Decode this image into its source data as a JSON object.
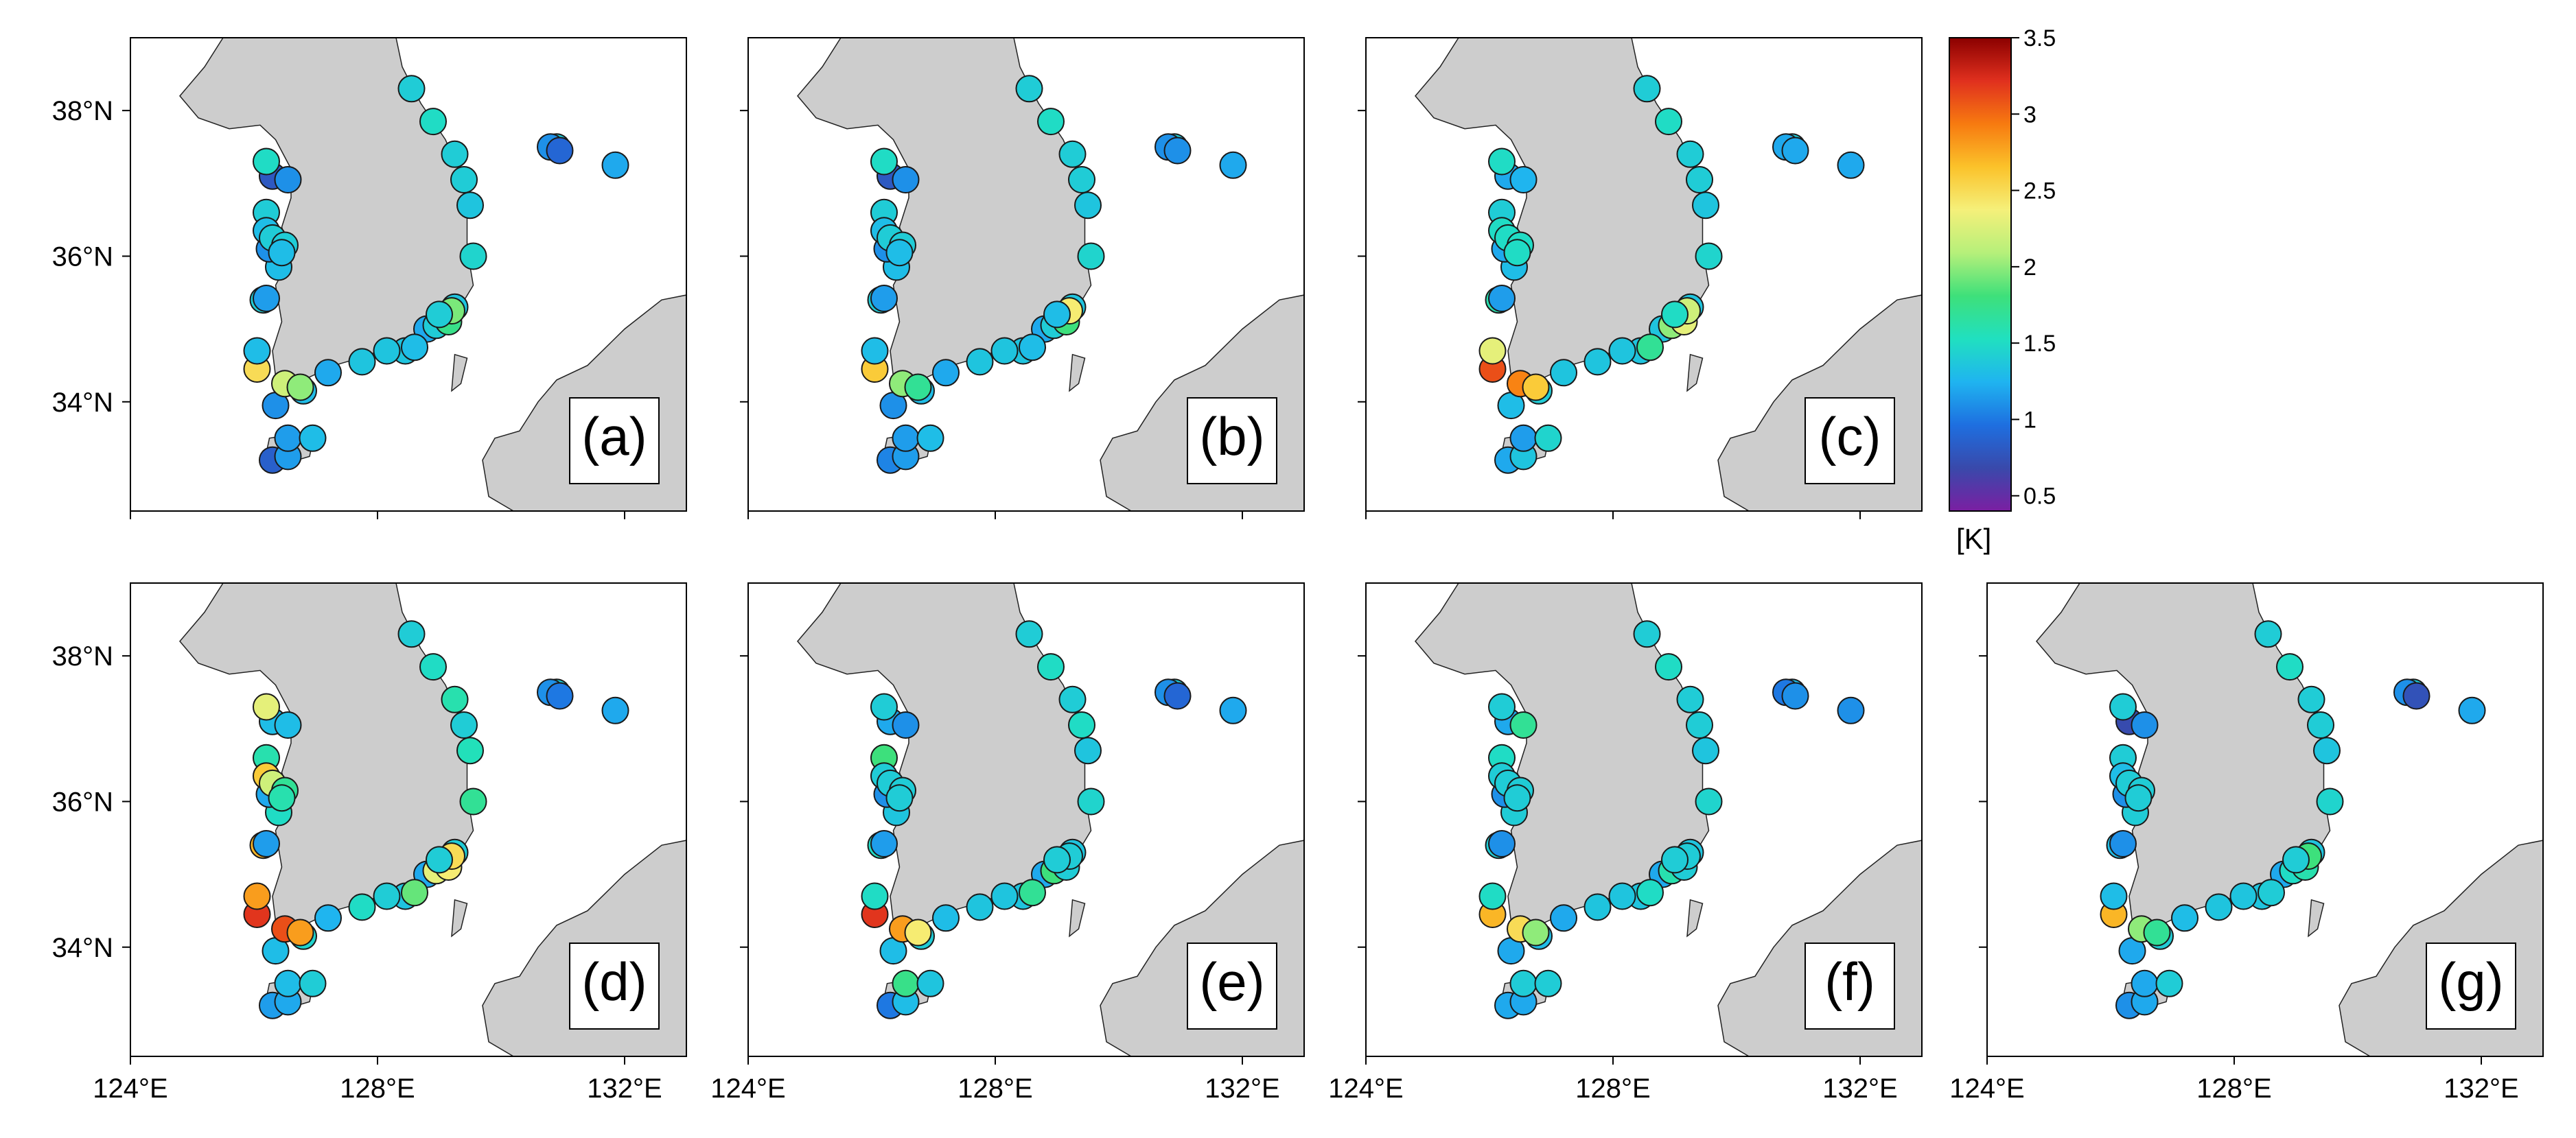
{
  "chart_data": {
    "type": "scatter",
    "description_units": "sea surface temperature error at coastal stations",
    "panels": [
      {
        "id": "a",
        "label": "(a)",
        "values": [
          1.4,
          1.5,
          1.4,
          1.4,
          1.35,
          1.45,
          1.35,
          1.5,
          1.2,
          1.35,
          1.35,
          1.35,
          1.2,
          1.3,
          1.1,
          0.85,
          1.15,
          1.15,
          1.3,
          1.3,
          1.1,
          1.4,
          0.8,
          1.1,
          2.5,
          2.2,
          2.0,
          1.3,
          1.4,
          1.3,
          1.2,
          1.5,
          1.4,
          1.4,
          1.3,
          1.3,
          1.4,
          1.75,
          1.95,
          1.4,
          1.4,
          1.1,
          1.2,
          0.9,
          1.15
        ]
      },
      {
        "id": "b",
        "label": "(b)",
        "values": [
          1.4,
          1.5,
          1.4,
          1.4,
          1.35,
          1.45,
          1.35,
          1.5,
          1.2,
          1.35,
          1.35,
          1.35,
          1.2,
          1.3,
          1.1,
          1.05,
          1.15,
          1.15,
          1.3,
          1.3,
          1.1,
          1.4,
          0.8,
          1.1,
          2.6,
          2.0,
          1.7,
          1.3,
          1.4,
          1.3,
          1.2,
          1.5,
          1.4,
          1.4,
          1.3,
          1.3,
          1.4,
          1.8,
          2.4,
          1.3,
          1.4,
          1.1,
          1.2,
          1.1,
          1.15
        ]
      },
      {
        "id": "c",
        "label": "(c)",
        "values": [
          1.4,
          1.5,
          1.4,
          1.4,
          1.35,
          1.45,
          1.35,
          1.5,
          1.35,
          1.35,
          1.35,
          1.35,
          1.35,
          1.4,
          1.3,
          1.2,
          1.35,
          1.15,
          1.45,
          1.3,
          1.2,
          1.4,
          1.2,
          1.25,
          3.1,
          2.9,
          2.6,
          2.3,
          1.6,
          1.5,
          1.4,
          1.5,
          1.5,
          1.5,
          1.5,
          1.7,
          2.0,
          2.3,
          2.2,
          1.5,
          1.4,
          1.2,
          1.2,
          1.2,
          1.15
        ]
      },
      {
        "id": "d",
        "label": "(d)",
        "values": [
          1.4,
          1.5,
          1.6,
          1.4,
          1.55,
          1.7,
          1.4,
          1.5,
          1.2,
          1.35,
          1.4,
          1.5,
          1.25,
          1.45,
          1.3,
          1.15,
          1.2,
          1.3,
          1.4,
          1.5,
          1.2,
          1.6,
          1.3,
          1.3,
          3.2,
          3.1,
          2.8,
          2.8,
          2.7,
          2.6,
          2.5,
          2.3,
          2.2,
          1.7,
          1.6,
          1.9,
          2.3,
          2.4,
          2.5,
          1.4,
          1.4,
          1.1,
          1.2,
          1.0,
          1.15
        ]
      },
      {
        "id": "e",
        "label": "(e)",
        "values": [
          1.4,
          1.5,
          1.4,
          1.5,
          1.35,
          1.45,
          1.35,
          1.5,
          1.2,
          1.35,
          1.35,
          1.35,
          1.3,
          1.4,
          1.3,
          1.0,
          1.3,
          1.75,
          1.35,
          1.35,
          1.1,
          1.8,
          1.2,
          1.1,
          3.2,
          2.8,
          2.4,
          1.5,
          1.5,
          1.4,
          1.4,
          1.4,
          1.4,
          1.4,
          1.4,
          1.7,
          1.8,
          1.4,
          1.4,
          1.4,
          1.4,
          1.1,
          1.2,
          0.9,
          1.15
        ]
      },
      {
        "id": "f",
        "label": "(f)",
        "values": [
          1.4,
          1.5,
          1.4,
          1.4,
          1.35,
          1.45,
          1.35,
          1.5,
          1.2,
          1.35,
          1.35,
          1.35,
          1.2,
          1.3,
          1.2,
          1.2,
          1.2,
          1.4,
          1.4,
          1.4,
          1.1,
          1.5,
          1.2,
          1.7,
          2.7,
          2.5,
          2.0,
          1.5,
          1.4,
          1.4,
          1.3,
          1.4,
          1.4,
          1.4,
          1.4,
          1.5,
          1.6,
          1.4,
          1.4,
          1.4,
          1.3,
          1.0,
          1.1,
          1.1,
          1.1
        ]
      },
      {
        "id": "g",
        "label": "(g)",
        "values": [
          1.4,
          1.5,
          1.4,
          1.4,
          1.35,
          1.45,
          1.35,
          1.5,
          1.2,
          1.35,
          1.35,
          1.35,
          1.3,
          1.4,
          1.2,
          1.1,
          1.2,
          1.2,
          1.4,
          1.4,
          1.1,
          1.4,
          0.7,
          1.1,
          2.7,
          2.0,
          1.7,
          1.3,
          1.3,
          1.3,
          1.2,
          1.4,
          1.4,
          1.4,
          1.4,
          1.4,
          1.5,
          1.6,
          1.8,
          1.4,
          1.4,
          1.1,
          1.2,
          0.75,
          1.1
        ]
      }
    ],
    "stations": [
      {
        "lon": 128.55,
        "lat": 38.3
      },
      {
        "lon": 128.9,
        "lat": 37.85
      },
      {
        "lon": 129.25,
        "lat": 37.4
      },
      {
        "lon": 129.4,
        "lat": 37.05
      },
      {
        "lon": 129.5,
        "lat": 36.7
      },
      {
        "lon": 129.55,
        "lat": 36.0
      },
      {
        "lon": 129.25,
        "lat": 35.3
      },
      {
        "lon": 129.1,
        "lat": 35.15
      },
      {
        "lon": 128.8,
        "lat": 35.0
      },
      {
        "lon": 128.45,
        "lat": 34.7
      },
      {
        "lon": 128.15,
        "lat": 34.7
      },
      {
        "lon": 127.75,
        "lat": 34.55
      },
      {
        "lon": 127.2,
        "lat": 34.4
      },
      {
        "lon": 126.8,
        "lat": 34.15
      },
      {
        "lon": 126.35,
        "lat": 33.95
      },
      {
        "lon": 126.3,
        "lat": 33.2
      },
      {
        "lon": 126.55,
        "lat": 33.25
      },
      {
        "lon": 126.55,
        "lat": 33.5
      },
      {
        "lon": 126.95,
        "lat": 33.5
      },
      {
        "lon": 126.4,
        "lat": 35.85
      },
      {
        "lon": 126.25,
        "lat": 36.1
      },
      {
        "lon": 126.2,
        "lat": 36.6
      },
      {
        "lon": 126.3,
        "lat": 37.1
      },
      {
        "lon": 126.55,
        "lat": 37.05
      },
      {
        "lon": 126.05,
        "lat": 34.45
      },
      {
        "lon": 126.5,
        "lat": 34.25
      },
      {
        "lon": 126.75,
        "lat": 34.2
      },
      {
        "lon": 126.05,
        "lat": 34.7
      },
      {
        "lon": 126.15,
        "lat": 35.4
      },
      {
        "lon": 126.2,
        "lat": 36.35
      },
      {
        "lon": 126.45,
        "lat": 36.1
      },
      {
        "lon": 126.2,
        "lat": 37.3
      },
      {
        "lon": 126.3,
        "lat": 36.25
      },
      {
        "lon": 126.5,
        "lat": 36.15
      },
      {
        "lon": 126.45,
        "lat": 36.05
      },
      {
        "lon": 128.6,
        "lat": 34.75
      },
      {
        "lon": 128.95,
        "lat": 35.05
      },
      {
        "lon": 129.15,
        "lat": 35.1
      },
      {
        "lon": 129.2,
        "lat": 35.25
      },
      {
        "lon": 129.0,
        "lat": 35.2
      },
      {
        "lon": 130.9,
        "lat": 37.5
      },
      {
        "lon": 130.8,
        "lat": 37.5
      },
      {
        "lon": 131.85,
        "lat": 37.25
      },
      {
        "lon": 130.95,
        "lat": 37.45
      },
      {
        "lon": 126.2,
        "lat": 35.42
      }
    ],
    "xlim": [
      124,
      133
    ],
    "ylim": [
      32.5,
      39
    ],
    "xticks": [
      "124°E",
      "128°E",
      "132°E"
    ],
    "xtick_values": [
      124,
      128,
      132
    ],
    "yticks": [
      "38°N",
      "36°N",
      "34°N"
    ],
    "ytick_values": [
      38,
      36,
      34
    ],
    "colorbar": {
      "min": 0.4,
      "max": 3.5,
      "tick_values": [
        3.5,
        3,
        2.5,
        2,
        1.5,
        1,
        0.5
      ],
      "tick_labels": [
        "3.5",
        "3",
        "2.5",
        "2",
        "1.5",
        "1",
        "0.5"
      ],
      "unit": "[K]",
      "colormap": [
        "#7b1fa2",
        "#3949ab",
        "#1e6fe0",
        "#1fb4f0",
        "#20e0c0",
        "#3ee07a",
        "#b6f07a",
        "#f5f07a",
        "#fbc22a",
        "#f77a10",
        "#e0301e",
        "#8b0000"
      ]
    }
  },
  "style": {
    "land": "#cdcdcd",
    "ocean": "#ffffff",
    "marker_edge": "#1a1a1a"
  }
}
